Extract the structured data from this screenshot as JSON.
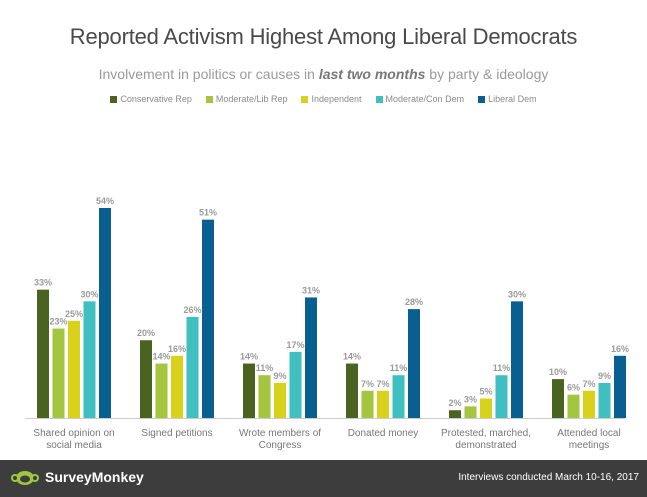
{
  "header": {
    "title": "Reported Activism Highest Among Liberal Democrats",
    "subtitle_pre": "Involvement in politics or causes in ",
    "subtitle_em": "last two months",
    "subtitle_post": " by party & ideology"
  },
  "footer": {
    "brand": "SurveyMonkey",
    "note": "Interviews conducted March 10-16, 2017",
    "logo_icon": "surveymonkey-logo-icon"
  },
  "chart_data": {
    "type": "bar",
    "title": "Reported Activism Highest Among Liberal Democrats",
    "subtitle": "Involvement in politics or causes in last two months by party & ideology",
    "xlabel": "",
    "ylabel": "",
    "ylim": [
      0,
      60
    ],
    "grid": false,
    "legend": "top",
    "categories": [
      [
        "Shared opinion on",
        "social media"
      ],
      [
        "Signed petitions"
      ],
      [
        "Wrote members of",
        "Congress"
      ],
      [
        "Donated money"
      ],
      [
        "Protested, marched,",
        "demonstrated"
      ],
      [
        "Attended local",
        "meetings"
      ]
    ],
    "series": [
      {
        "name": "Conservative Rep",
        "color": "#4b6320",
        "values": [
          33,
          20,
          14,
          14,
          2,
          10
        ]
      },
      {
        "name": "Moderate/Lib Rep",
        "color": "#a3c53f",
        "values": [
          23,
          14,
          11,
          7,
          3,
          6
        ]
      },
      {
        "name": "Independent",
        "color": "#d8d21c",
        "values": [
          25,
          16,
          9,
          7,
          5,
          7
        ]
      },
      {
        "name": "Moderate/Con Dem",
        "color": "#3fbfbf",
        "values": [
          30,
          26,
          17,
          11,
          11,
          9
        ]
      },
      {
        "name": "Liberal Dem",
        "color": "#0a5f91",
        "values": [
          54,
          51,
          31,
          28,
          30,
          16
        ]
      }
    ],
    "value_suffix": "%"
  }
}
